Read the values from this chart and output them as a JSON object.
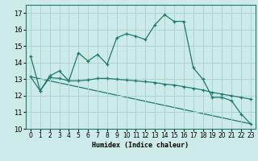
{
  "xlabel": "Humidex (Indice chaleur)",
  "bg_color": "#cceae7",
  "grid_color": "#aed4d0",
  "line_color": "#1e7a6e",
  "xlim": [
    -0.5,
    23.5
  ],
  "ylim": [
    10,
    17.5
  ],
  "yticks": [
    10,
    11,
    12,
    13,
    14,
    15,
    16,
    17
  ],
  "xticks": [
    0,
    1,
    2,
    3,
    4,
    5,
    6,
    7,
    8,
    9,
    10,
    11,
    12,
    13,
    14,
    15,
    16,
    17,
    18,
    19,
    20,
    21,
    22,
    23
  ],
  "main_x": [
    0,
    1,
    2,
    3,
    4,
    5,
    6,
    7,
    8,
    9,
    10,
    11,
    12,
    13,
    14,
    15,
    16,
    17,
    18,
    19,
    20,
    21,
    22,
    23
  ],
  "main_y": [
    14.4,
    12.3,
    13.2,
    13.5,
    12.9,
    14.6,
    14.1,
    14.5,
    13.9,
    15.5,
    15.75,
    15.6,
    15.4,
    16.3,
    16.9,
    16.5,
    16.5,
    13.7,
    13.0,
    11.9,
    11.9,
    11.7,
    10.9,
    10.3
  ],
  "line2_x": [
    0,
    1,
    2,
    3,
    4,
    5,
    6,
    7,
    8,
    9,
    10,
    11,
    12,
    13,
    14,
    15,
    16,
    17,
    18,
    19,
    20,
    21,
    22,
    23
  ],
  "line2_y": [
    13.15,
    12.3,
    13.1,
    13.05,
    12.9,
    12.9,
    12.95,
    13.05,
    13.05,
    13.0,
    12.95,
    12.9,
    12.85,
    12.8,
    12.7,
    12.65,
    12.55,
    12.45,
    12.35,
    12.2,
    12.1,
    12.0,
    11.9,
    11.8
  ],
  "line3_x": [
    0,
    23
  ],
  "line3_y": [
    13.15,
    10.3
  ]
}
